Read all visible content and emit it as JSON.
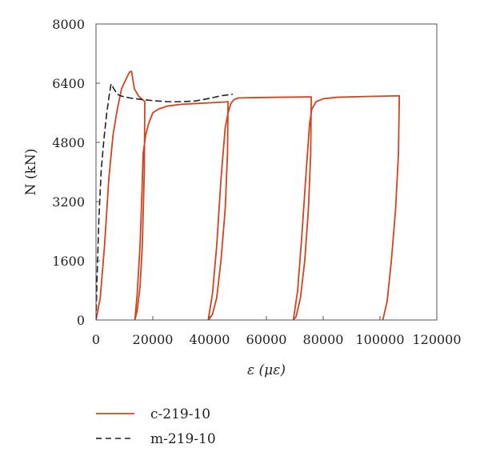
{
  "chart_data": {
    "type": "line",
    "xlabel": "ε (με)",
    "ylabel": "N (kN)",
    "xlim": [
      0,
      120000
    ],
    "ylim": [
      0,
      8000
    ],
    "xticks": [
      0,
      20000,
      40000,
      60000,
      80000,
      100000,
      120000
    ],
    "yticks": [
      0,
      1600,
      3200,
      4800,
      6400,
      8000
    ],
    "xtick_labels": [
      "0",
      "20000",
      "40000",
      "60000",
      "80000",
      "100000",
      "120000"
    ],
    "ytick_labels": [
      "0",
      "1600",
      "3200",
      "4800",
      "6400",
      "8000"
    ],
    "grid": false,
    "legend_position": "bottom-left (below plot)",
    "series": [
      {
        "name": "c-219-10",
        "color": "#d4421e",
        "style": "solid",
        "points": [
          [
            0,
            0
          ],
          [
            1500,
            600
          ],
          [
            3000,
            2000
          ],
          [
            4500,
            3800
          ],
          [
            6000,
            5000
          ],
          [
            7500,
            5700
          ],
          [
            9000,
            6250
          ],
          [
            10500,
            6500
          ],
          [
            11800,
            6700
          ],
          [
            12500,
            6720
          ],
          [
            13000,
            6500
          ],
          [
            13500,
            6250
          ],
          [
            15000,
            6050
          ],
          [
            16500,
            5950
          ],
          [
            17200,
            5900
          ],
          [
            17000,
            4000
          ],
          [
            16300,
            2000
          ],
          [
            15500,
            900
          ],
          [
            14500,
            250
          ],
          [
            13700,
            0
          ],
          [
            14500,
            700
          ],
          [
            15500,
            2000
          ],
          [
            16200,
            3500
          ],
          [
            16600,
            4500
          ],
          [
            17500,
            5000
          ],
          [
            18500,
            5300
          ],
          [
            20000,
            5600
          ],
          [
            22000,
            5700
          ],
          [
            25000,
            5780
          ],
          [
            30000,
            5830
          ],
          [
            35000,
            5850
          ],
          [
            40000,
            5870
          ],
          [
            45000,
            5890
          ],
          [
            46500,
            5900
          ],
          [
            46300,
            4500
          ],
          [
            45500,
            3000
          ],
          [
            44000,
            1600
          ],
          [
            42500,
            600
          ],
          [
            41000,
            150
          ],
          [
            39500,
            0
          ],
          [
            41000,
            700
          ],
          [
            42500,
            2000
          ],
          [
            44000,
            3800
          ],
          [
            45500,
            5200
          ],
          [
            46500,
            5600
          ],
          [
            47500,
            5850
          ],
          [
            48500,
            5950
          ],
          [
            50000,
            6000
          ],
          [
            55000,
            6010
          ],
          [
            65000,
            6020
          ],
          [
            75800,
            6030
          ],
          [
            75600,
            4500
          ],
          [
            74800,
            3000
          ],
          [
            73500,
            1600
          ],
          [
            72000,
            600
          ],
          [
            70500,
            100
          ],
          [
            69500,
            0
          ],
          [
            71000,
            800
          ],
          [
            72500,
            2300
          ],
          [
            74000,
            4000
          ],
          [
            75200,
            5300
          ],
          [
            76000,
            5700
          ],
          [
            77500,
            5900
          ],
          [
            80000,
            5980
          ],
          [
            85000,
            6020
          ],
          [
            95000,
            6040
          ],
          [
            106800,
            6060
          ],
          [
            106500,
            4500
          ],
          [
            105500,
            3000
          ],
          [
            104000,
            1600
          ],
          [
            102500,
            500
          ],
          [
            101000,
            0
          ]
        ]
      },
      {
        "name": "m-219-10",
        "color": "#222222",
        "style": "dashed",
        "points": [
          [
            0,
            0
          ],
          [
            400,
            1200
          ],
          [
            1000,
            2700
          ],
          [
            1800,
            4000
          ],
          [
            2800,
            4900
          ],
          [
            3800,
            5600
          ],
          [
            4800,
            6150
          ],
          [
            5300,
            6380
          ],
          [
            6300,
            6250
          ],
          [
            7500,
            6100
          ],
          [
            9000,
            6050
          ],
          [
            12000,
            6000
          ],
          [
            16000,
            5960
          ],
          [
            20000,
            5930
          ],
          [
            25000,
            5900
          ],
          [
            30000,
            5900
          ],
          [
            35000,
            5920
          ],
          [
            40000,
            5990
          ],
          [
            44000,
            6060
          ],
          [
            46000,
            6080
          ],
          [
            48000,
            6100
          ]
        ]
      }
    ]
  }
}
